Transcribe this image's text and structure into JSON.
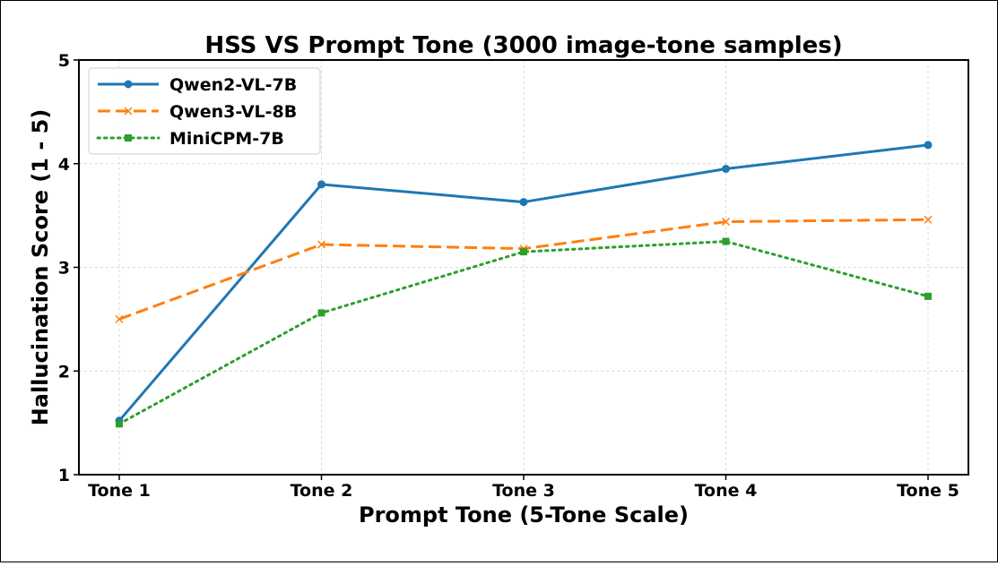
{
  "chart_data": {
    "type": "line",
    "title": "HSS VS Prompt Tone (3000 image-tone samples)",
    "xlabel": "Prompt Tone (5-Tone Scale)",
    "ylabel": "Hallucination Score (1 - 5)",
    "categories": [
      "Tone 1",
      "Tone 2",
      "Tone 3",
      "Tone 4",
      "Tone 5"
    ],
    "ylim": [
      1,
      5
    ],
    "yticks": [
      "1",
      "2",
      "3",
      "4",
      "5"
    ],
    "grid": true,
    "legend_position": "top-left",
    "series": [
      {
        "name": "Qwen2-VL-7B",
        "values": [
          1.52,
          3.8,
          3.63,
          3.95,
          4.18
        ],
        "color": "#1f77b4",
        "style": "solid",
        "marker": "circle"
      },
      {
        "name": "Qwen3-VL-8B",
        "values": [
          2.5,
          3.22,
          3.18,
          3.44,
          3.46
        ],
        "color": "#ff7f0e",
        "style": "dashed",
        "marker": "x"
      },
      {
        "name": "MiniCPM-7B",
        "values": [
          1.49,
          2.56,
          3.15,
          3.25,
          2.72
        ],
        "color": "#2ca02c",
        "style": "dotted",
        "marker": "square"
      }
    ]
  }
}
